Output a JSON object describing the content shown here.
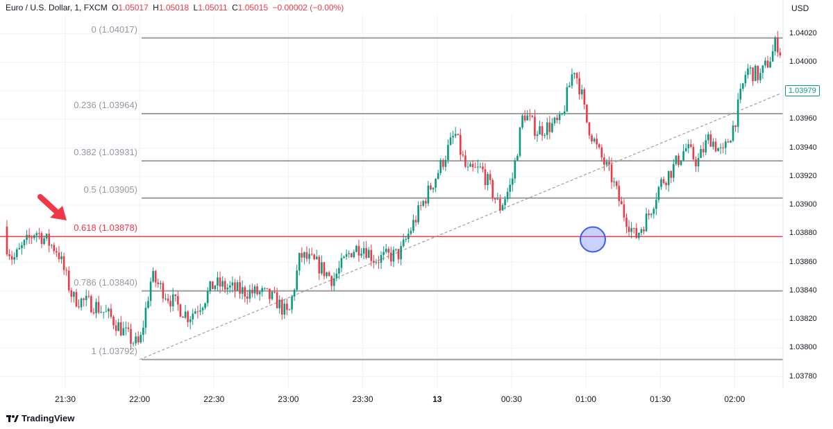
{
  "header": {
    "symbol": "Euro / U.S. Dollar, 1, FXCM",
    "o_label": "O",
    "o_value": "1.05017",
    "h_label": "H",
    "h_value": "1.05018",
    "l_label": "L",
    "l_value": "1.05011",
    "c_label": "C",
    "c_value": "1.05015",
    "change": "−0.00002 (−0.00%)"
  },
  "currency": "USD",
  "brand": "TradingView",
  "last_price": "1.03979",
  "colors": {
    "up": "#089981",
    "down": "#f23645",
    "fib": "#9e9e9e",
    "fib_highlight": "#f23645",
    "circle": "#3d5afe"
  },
  "chart_data": {
    "type": "candlestick",
    "title": "Euro / U.S. Dollar, 1, FXCM",
    "x_ticks": [
      "21:30",
      "22:00",
      "22:30",
      "23:00",
      "23:30",
      "13",
      "00:30",
      "01:00",
      "01:30",
      "02:00"
    ],
    "y_ticks": [
      "1.04020",
      "1.04000",
      "1.03980",
      "1.03960",
      "1.03940",
      "1.03920",
      "1.03900",
      "1.03880",
      "1.03860",
      "1.03840",
      "1.03820",
      "1.03800",
      "1.03780"
    ],
    "ylim": [
      1.0377,
      1.04032
    ],
    "grid": true,
    "fibonacci": [
      {
        "level": "0",
        "price": 1.04017,
        "label": "0 (1.04017)"
      },
      {
        "level": "0.236",
        "price": 1.03964,
        "label": "0.236 (1.03964)"
      },
      {
        "level": "0.382",
        "price": 1.03931,
        "label": "0.382 (1.03931)"
      },
      {
        "level": "0.5",
        "price": 1.03905,
        "label": "0.5 (1.03905)"
      },
      {
        "level": "0.618",
        "price": 1.03878,
        "label": "0.618 (1.03878)",
        "highlight": true
      },
      {
        "level": "0.786",
        "price": 1.0384,
        "label": "0.786 (1.03840)"
      },
      {
        "level": "1",
        "price": 1.03792,
        "label": "1 (1.03792)"
      }
    ],
    "trendline": {
      "from": [
        "22:00",
        1.03792
      ],
      "to": [
        "02:20",
        1.03978
      ],
      "style": "dashed"
    },
    "marker_circle": {
      "time": "01:00",
      "price": 1.03876
    },
    "arrow_annotation": {
      "points_to": "0.618 (1.03878)"
    },
    "path_points": [
      [
        21.05,
        1.03885
      ],
      [
        21.15,
        1.03862
      ],
      [
        21.3,
        1.03882
      ],
      [
        21.45,
        1.03868
      ],
      [
        21.55,
        1.03835
      ],
      [
        21.7,
        1.0383
      ],
      [
        21.8,
        1.03822
      ],
      [
        21.95,
        1.03805
      ],
      [
        22.0,
        1.03802
      ],
      [
        22.08,
        1.0385
      ],
      [
        22.2,
        1.03835
      ],
      [
        22.33,
        1.03822
      ],
      [
        22.42,
        1.03832
      ],
      [
        22.5,
        1.03845
      ],
      [
        22.67,
        1.0384
      ],
      [
        22.83,
        1.03838
      ],
      [
        22.92,
        1.03833
      ],
      [
        23.0,
        1.03822
      ],
      [
        23.08,
        1.03865
      ],
      [
        23.2,
        1.03858
      ],
      [
        23.3,
        1.03848
      ],
      [
        23.42,
        1.03868
      ],
      [
        23.5,
        1.03872
      ],
      [
        23.58,
        1.03862
      ],
      [
        23.75,
        1.03866
      ],
      [
        23.83,
        1.03885
      ],
      [
        23.92,
        1.03905
      ],
      [
        24.0,
        1.03922
      ],
      [
        24.12,
        1.0395
      ],
      [
        24.2,
        1.03923
      ],
      [
        24.3,
        1.03925
      ],
      [
        24.42,
        1.03898
      ],
      [
        24.5,
        1.03915
      ],
      [
        24.58,
        1.03965
      ],
      [
        24.67,
        1.03952
      ],
      [
        24.83,
        1.03958
      ],
      [
        24.92,
        1.03997
      ],
      [
        24.97,
        1.03978
      ],
      [
        25.0,
        1.0396
      ],
      [
        25.08,
        1.03938
      ],
      [
        25.17,
        1.0392
      ],
      [
        25.25,
        1.03895
      ],
      [
        25.3,
        1.03885
      ],
      [
        25.33,
        1.03877
      ],
      [
        25.42,
        1.03893
      ],
      [
        25.5,
        1.03915
      ],
      [
        25.58,
        1.03925
      ],
      [
        25.67,
        1.0394
      ],
      [
        25.75,
        1.0393
      ],
      [
        25.83,
        1.03948
      ],
      [
        25.92,
        1.03935
      ],
      [
        26.0,
        1.03958
      ],
      [
        26.08,
        1.03995
      ],
      [
        26.17,
        1.0399
      ],
      [
        26.25,
        1.04005
      ],
      [
        26.28,
        1.04015
      ],
      [
        26.35,
        1.03995
      ],
      [
        26.42,
        1.03985
      ],
      [
        26.5,
        1.0398
      ],
      [
        26.58,
        1.03968
      ],
      [
        26.67,
        1.03975
      ],
      [
        26.72,
        1.03979
      ]
    ]
  }
}
